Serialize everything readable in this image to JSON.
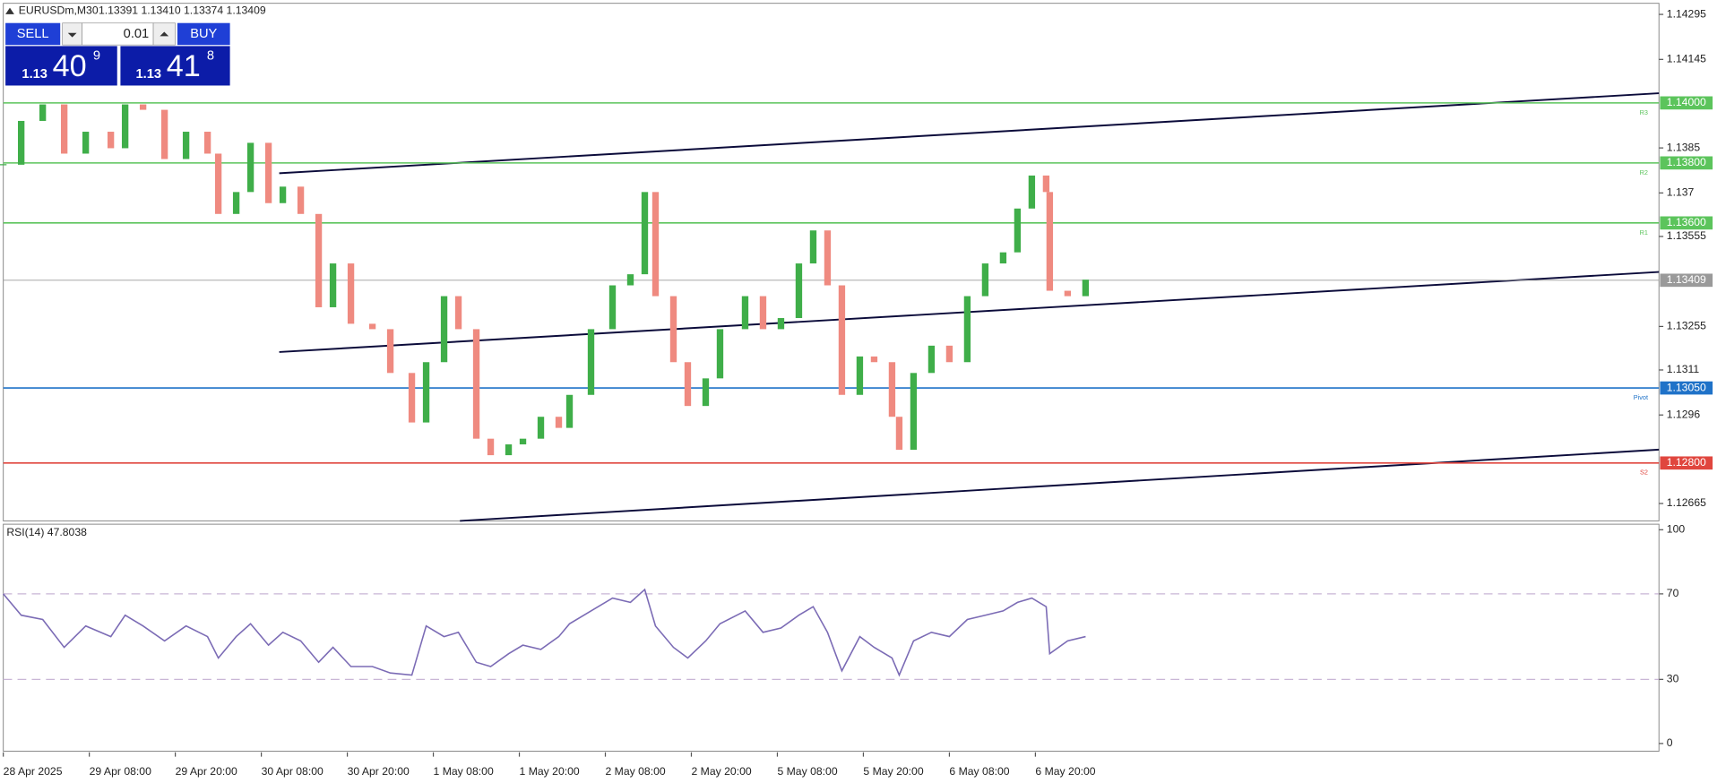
{
  "header": {
    "symbol": "EURUSDm,M30",
    "ohlc": "1.13391 1.13410 1.13374 1.13409"
  },
  "trade_panel": {
    "sell": "SELL",
    "lot": "0.01",
    "buy": "BUY",
    "bid_big": "1.13",
    "bid_main": "40",
    "bid_pip": "9",
    "ask_big": "1.13",
    "ask_main": "41",
    "ask_pip": "8"
  },
  "chart_data": [
    {
      "type": "candlestick",
      "x": [
        0,
        5,
        11,
        17,
        23,
        30,
        34,
        39,
        45,
        51,
        57,
        60,
        65,
        69,
        74,
        78,
        83,
        88,
        92,
        97,
        103,
        108,
        114,
        118,
        123,
        127,
        132,
        136,
        141,
        145,
        150,
        155,
        158,
        164,
        170,
        175,
        179,
        182,
        187,
        191,
        196,
        200,
        207,
        212,
        217,
        222,
        226,
        230,
        234,
        239,
        243,
        248,
        250,
        254,
        259,
        264,
        269,
        274,
        279,
        283,
        287,
        291,
        292,
        297,
        302
      ],
      "values": [
        1.13794,
        1.1394,
        1.13995,
        1.13831,
        1.13904,
        1.13849,
        1.13995,
        1.13977,
        1.13813,
        1.13904,
        1.13831,
        1.1363,
        1.13703,
        1.13867,
        1.13666,
        1.13721,
        1.1363,
        1.13319,
        1.13465,
        1.13264,
        1.13246,
        1.131,
        1.12935,
        1.13136,
        1.13356,
        1.13246,
        1.12881,
        1.12826,
        1.12862,
        1.12881,
        1.12954,
        1.12917,
        1.13027,
        1.13246,
        1.13392,
        1.13429,
        1.13703,
        1.13356,
        1.13136,
        1.1299,
        1.13082,
        1.13246,
        1.13356,
        1.13246,
        1.13283,
        1.13465,
        1.13575,
        1.13392,
        1.13027,
        1.13155,
        1.13136,
        1.12954,
        1.12844,
        1.131,
        1.13191,
        1.13136,
        1.13356,
        1.13465,
        1.13502,
        1.13648,
        1.13758,
        1.13703,
        1.13374,
        1.13356,
        1.13411
      ],
      "up_color": "#3fae49",
      "down_color": "#ef8a80",
      "xlim": [
        0,
        462
      ],
      "ylim": [
        1.12607,
        1.14332
      ],
      "yticks": [
        1.14295,
        1.14145,
        1.1385,
        1.137,
        1.13555,
        1.13255,
        1.1311,
        1.1296,
        1.12665
      ],
      "xticks": [
        {
          "value": 0,
          "label": "28 Apr 2025"
        },
        {
          "value": 24,
          "label": "29 Apr 08:00"
        },
        {
          "value": 48,
          "label": "29 Apr 20:00"
        },
        {
          "value": 72,
          "label": "30 Apr 08:00"
        },
        {
          "value": 96,
          "label": "30 Apr 20:00"
        },
        {
          "value": 120,
          "label": "1 May 08:00"
        },
        {
          "value": 144,
          "label": "1 May 20:00"
        },
        {
          "value": 168,
          "label": "2 May 08:00"
        },
        {
          "value": 192,
          "label": "2 May 20:00"
        },
        {
          "value": 216,
          "label": "5 May 08:00"
        },
        {
          "value": 240,
          "label": "5 May 20:00"
        },
        {
          "value": 264,
          "label": "6 May 08:00"
        },
        {
          "value": 288,
          "label": "6 May 20:00"
        }
      ],
      "levels": [
        {
          "name": "R3",
          "value": 1.14,
          "label": "1.14000",
          "color": "#5cc45c"
        },
        {
          "name": "R2",
          "value": 1.138,
          "label": "1.13800",
          "color": "#5cc45c"
        },
        {
          "name": "R1",
          "value": 1.136,
          "label": "1.13600",
          "color": "#5cc45c"
        },
        {
          "name": "Pivot",
          "value": 1.1305,
          "label": "1.13050",
          "color": "#1f72c8"
        },
        {
          "name": "S2",
          "value": 1.128,
          "label": "1.12800",
          "color": "#e0463e"
        }
      ],
      "current_price": {
        "value": 1.13409,
        "label": "1.13409",
        "color": "#9a9a9a"
      }
    },
    {
      "type": "line",
      "title": "RSI(14) 47.8038",
      "color": "#7b6bb5",
      "x": [
        0,
        5,
        11,
        17,
        23,
        30,
        34,
        39,
        45,
        51,
        57,
        60,
        65,
        69,
        74,
        78,
        83,
        88,
        92,
        97,
        103,
        108,
        114,
        118,
        123,
        127,
        132,
        136,
        141,
        145,
        150,
        155,
        158,
        164,
        170,
        175,
        179,
        182,
        187,
        191,
        196,
        200,
        207,
        212,
        217,
        222,
        226,
        230,
        234,
        239,
        243,
        248,
        250,
        254,
        259,
        264,
        269,
        274,
        279,
        283,
        287,
        291,
        292,
        297,
        302
      ],
      "values": [
        70,
        60,
        58,
        45,
        55,
        50,
        60,
        55,
        48,
        55,
        50,
        40,
        50,
        56,
        46,
        52,
        48,
        38,
        45,
        36,
        36,
        33,
        32,
        55,
        50,
        52,
        38,
        36,
        42,
        46,
        44,
        50,
        56,
        62,
        68,
        66,
        72,
        55,
        45,
        40,
        48,
        56,
        62,
        52,
        54,
        60,
        64,
        52,
        34,
        50,
        45,
        40,
        32,
        48,
        52,
        50,
        58,
        60,
        62,
        66,
        68,
        64,
        42,
        48,
        50
      ],
      "xlim": [
        0,
        462
      ],
      "ylim": [
        -3.6,
        102.6
      ],
      "yticks": [
        0,
        30,
        70,
        100
      ],
      "levels": [
        30,
        70
      ]
    }
  ]
}
